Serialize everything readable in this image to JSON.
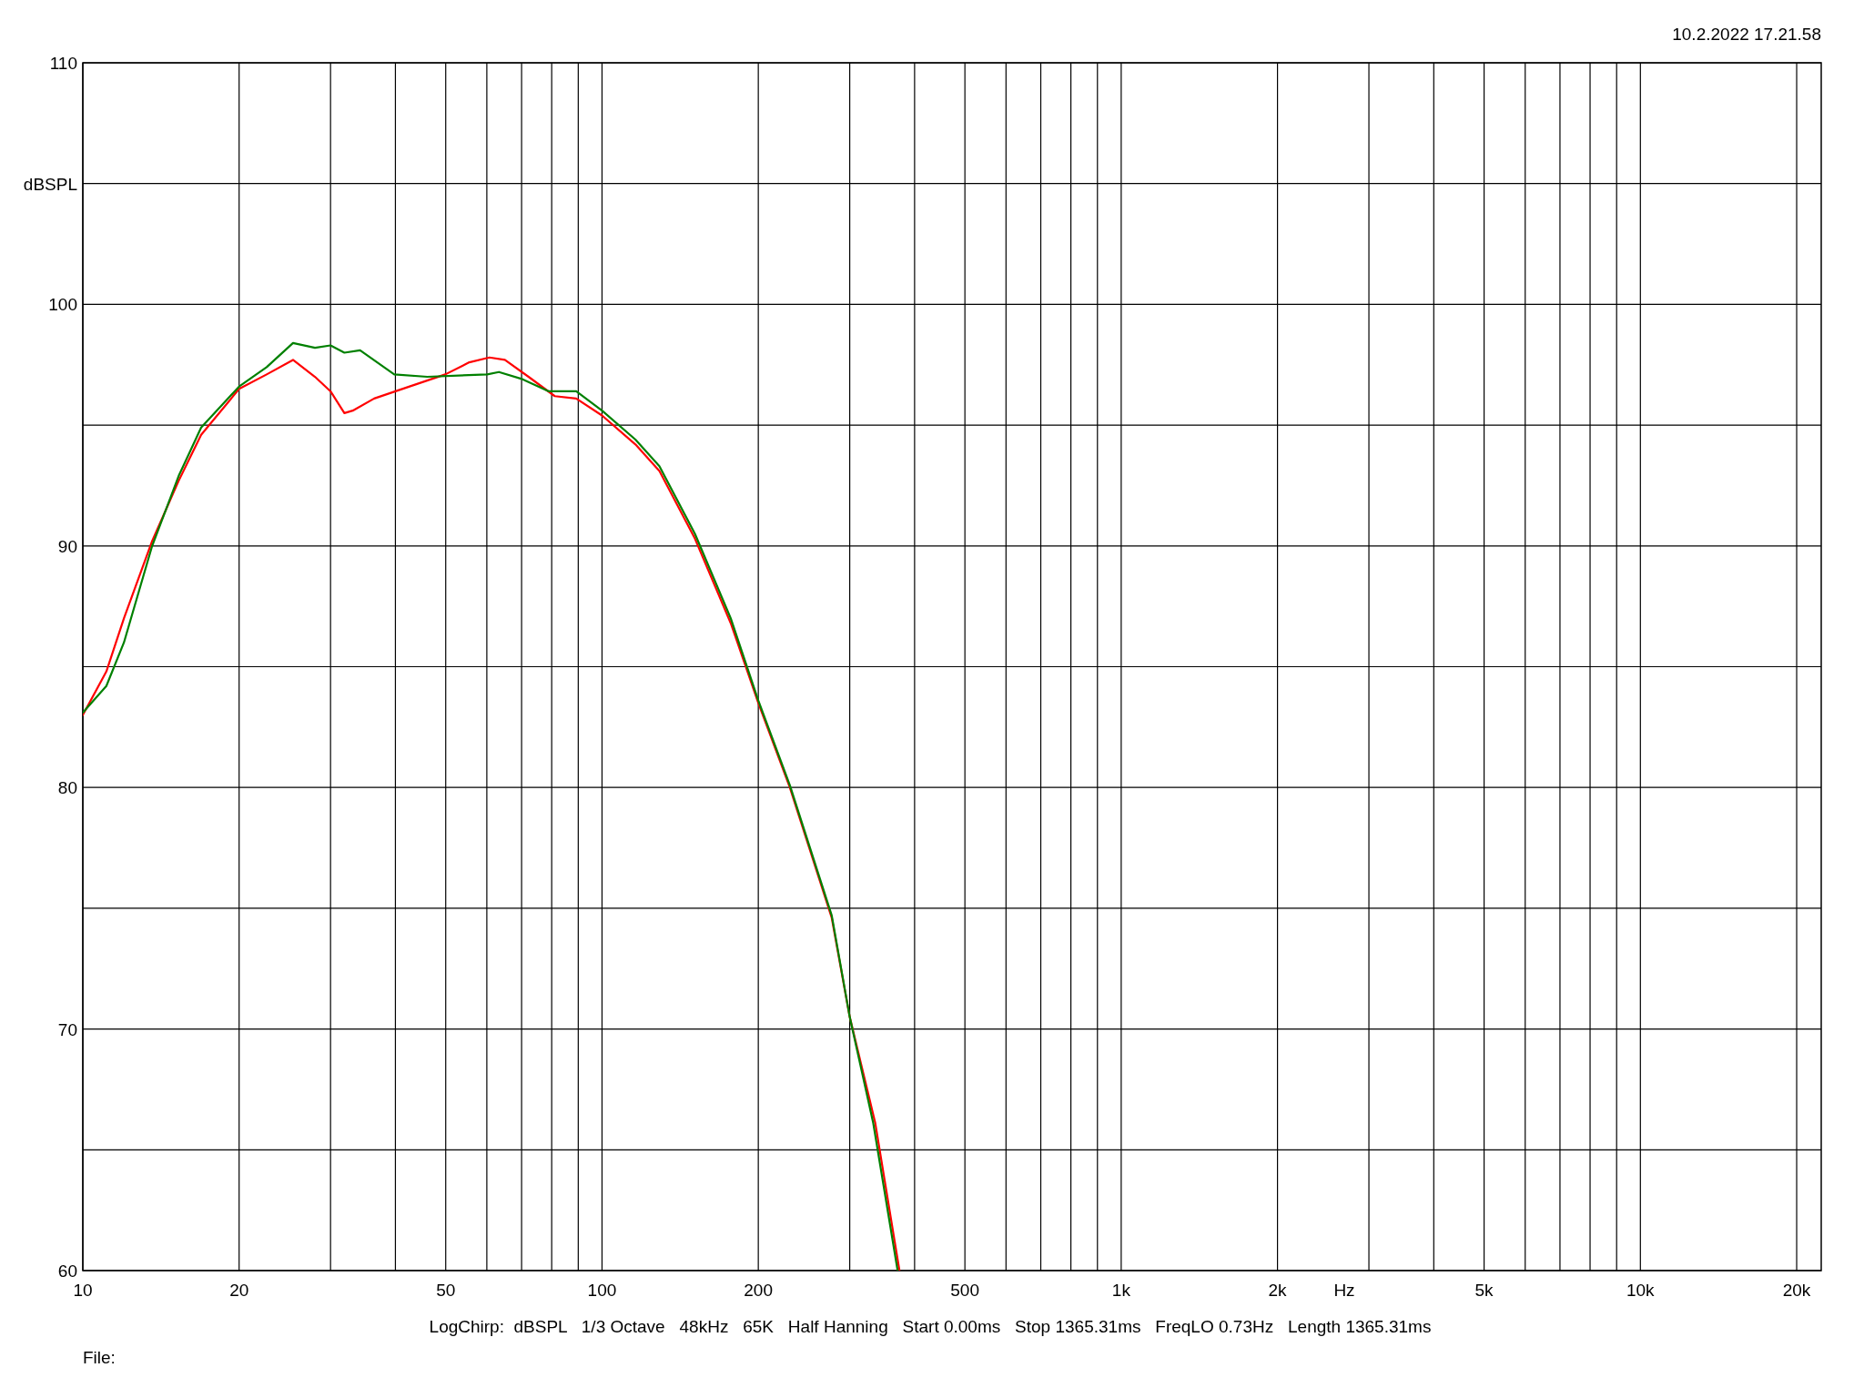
{
  "chart_data": {
    "type": "line",
    "annotations": [
      "10.2.2022 17.21.58",
      "LogChirp:  dBSPL   1/3 Octave   48kHz   65K   Half Hanning   Start 0.00ms   Stop 1365.31ms   FreqLO 0.73Hz   Length 1365.31ms",
      "File:"
    ],
    "xlabel": "Hz",
    "ylabel": "dBSPL",
    "log": "x",
    "grid": true,
    "marker": "none",
    "line_style": "solid",
    "xlim": [
      10,
      22300
    ],
    "ylim": [
      60,
      110
    ],
    "xticks": [
      10,
      20,
      {
        "value": 30,
        "label": null
      },
      {
        "value": 40,
        "label": null
      },
      50,
      {
        "value": 60,
        "label": null
      },
      {
        "value": 70,
        "label": null
      },
      {
        "value": 80,
        "label": null
      },
      {
        "value": 90,
        "label": null
      },
      100,
      200,
      {
        "value": 300,
        "label": null
      },
      {
        "value": 400,
        "label": null
      },
      500,
      {
        "value": 600,
        "label": null
      },
      {
        "value": 700,
        "label": null
      },
      {
        "value": 800,
        "label": null
      },
      {
        "value": 900,
        "label": null
      },
      {
        "value": 1000,
        "label": "1k"
      },
      {
        "value": 2000,
        "label": "2k"
      },
      {
        "value": 3000,
        "label": null
      },
      {
        "value": 4000,
        "label": null
      },
      {
        "value": 5000,
        "label": "5k"
      },
      {
        "value": 6000,
        "label": null
      },
      {
        "value": 7000,
        "label": null
      },
      {
        "value": 8000,
        "label": null
      },
      {
        "value": 9000,
        "label": null
      },
      {
        "value": 10000,
        "label": "10k"
      },
      {
        "value": 20000,
        "label": "20k"
      }
    ],
    "yticks": [
      60,
      {
        "value": 65,
        "label": null
      },
      70,
      {
        "value": 75,
        "label": null
      },
      80,
      {
        "value": 85,
        "label": null
      },
      90,
      {
        "value": 95,
        "label": null
      },
      100,
      {
        "value": 105,
        "label": null
      },
      110
    ],
    "series": [
      {
        "color": "#ff0000",
        "x": [
          10,
          11.1,
          12,
          13.6,
          15.3,
          16.9,
          20,
          22.6,
          25.4,
          28,
          30,
          31.9,
          33.1,
          36.4,
          42.6,
          49.9,
          55.5,
          60.7,
          65,
          72.2,
          81.1,
          89.2,
          100,
          116,
          129,
          151,
          177,
          200,
          230,
          277,
          300,
          336,
          374
        ],
        "values": [
          83.0,
          84.8,
          87.0,
          90.2,
          92.7,
          94.6,
          96.5,
          97.1,
          97.7,
          97.0,
          96.4,
          95.5,
          95.6,
          96.1,
          96.6,
          97.1,
          97.6,
          97.8,
          97.7,
          97.0,
          96.2,
          96.1,
          95.4,
          94.2,
          93.1,
          90.3,
          86.8,
          83.5,
          80.0,
          74.6,
          70.5,
          66.1,
          60
        ]
      },
      {
        "color": "#008000",
        "x": [
          10,
          11.1,
          12,
          13.6,
          15.3,
          16.9,
          20,
          22.6,
          25.4,
          28,
          30,
          31.9,
          34.2,
          39.8,
          46.1,
          60.1,
          63.3,
          70.3,
          79,
          89.2,
          100,
          116,
          129,
          151,
          177,
          200,
          230,
          277,
          300,
          333,
          371
        ],
        "values": [
          83.1,
          84.2,
          86.0,
          90.0,
          92.9,
          94.9,
          96.6,
          97.4,
          98.4,
          98.2,
          98.3,
          98.0,
          98.1,
          97.1,
          97.0,
          97.1,
          97.2,
          96.9,
          96.4,
          96.4,
          95.6,
          94.4,
          93.3,
          90.5,
          87.0,
          83.6,
          80.1,
          74.7,
          70.5,
          66.1,
          60
        ]
      }
    ]
  }
}
